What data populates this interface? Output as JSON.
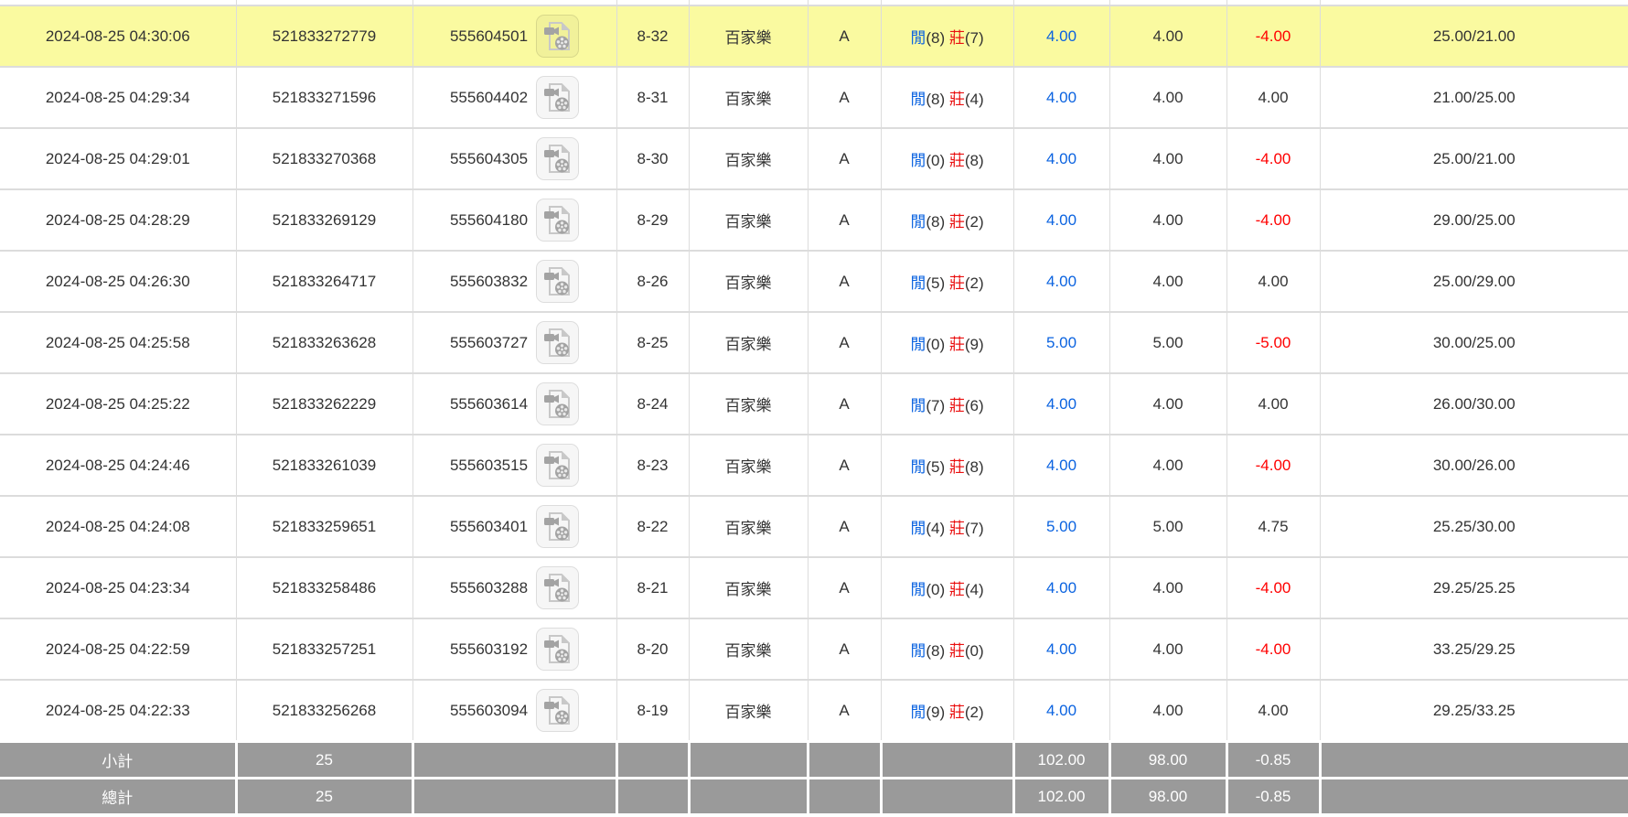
{
  "table": {
    "result_labels": {
      "player": "閒",
      "banker": "莊"
    },
    "icons": {
      "round_replay": "video-file-icon"
    },
    "rows": [
      {
        "time": "2024-08-25 04:30:06",
        "bet_id": "521833272779",
        "round_id": "555604501",
        "table_round": "8-32",
        "game": "百家樂",
        "table_code": "A",
        "player_score": "8",
        "banker_score": "7",
        "bet": "4.00",
        "valid": "4.00",
        "win_loss": "-4.00",
        "balance": "25.00/21.00",
        "highlighted": true
      },
      {
        "time": "2024-08-25 04:29:34",
        "bet_id": "521833271596",
        "round_id": "555604402",
        "table_round": "8-31",
        "game": "百家樂",
        "table_code": "A",
        "player_score": "8",
        "banker_score": "4",
        "bet": "4.00",
        "valid": "4.00",
        "win_loss": "4.00",
        "balance": "21.00/25.00",
        "highlighted": false
      },
      {
        "time": "2024-08-25 04:29:01",
        "bet_id": "521833270368",
        "round_id": "555604305",
        "table_round": "8-30",
        "game": "百家樂",
        "table_code": "A",
        "player_score": "0",
        "banker_score": "8",
        "bet": "4.00",
        "valid": "4.00",
        "win_loss": "-4.00",
        "balance": "25.00/21.00",
        "highlighted": false
      },
      {
        "time": "2024-08-25 04:28:29",
        "bet_id": "521833269129",
        "round_id": "555604180",
        "table_round": "8-29",
        "game": "百家樂",
        "table_code": "A",
        "player_score": "8",
        "banker_score": "2",
        "bet": "4.00",
        "valid": "4.00",
        "win_loss": "-4.00",
        "balance": "29.00/25.00",
        "highlighted": false
      },
      {
        "time": "2024-08-25 04:26:30",
        "bet_id": "521833264717",
        "round_id": "555603832",
        "table_round": "8-26",
        "game": "百家樂",
        "table_code": "A",
        "player_score": "5",
        "banker_score": "2",
        "bet": "4.00",
        "valid": "4.00",
        "win_loss": "4.00",
        "balance": "25.00/29.00",
        "highlighted": false
      },
      {
        "time": "2024-08-25 04:25:58",
        "bet_id": "521833263628",
        "round_id": "555603727",
        "table_round": "8-25",
        "game": "百家樂",
        "table_code": "A",
        "player_score": "0",
        "banker_score": "9",
        "bet": "5.00",
        "valid": "5.00",
        "win_loss": "-5.00",
        "balance": "30.00/25.00",
        "highlighted": false
      },
      {
        "time": "2024-08-25 04:25:22",
        "bet_id": "521833262229",
        "round_id": "555603614",
        "table_round": "8-24",
        "game": "百家樂",
        "table_code": "A",
        "player_score": "7",
        "banker_score": "6",
        "bet": "4.00",
        "valid": "4.00",
        "win_loss": "4.00",
        "balance": "26.00/30.00",
        "highlighted": false
      },
      {
        "time": "2024-08-25 04:24:46",
        "bet_id": "521833261039",
        "round_id": "555603515",
        "table_round": "8-23",
        "game": "百家樂",
        "table_code": "A",
        "player_score": "5",
        "banker_score": "8",
        "bet": "4.00",
        "valid": "4.00",
        "win_loss": "-4.00",
        "balance": "30.00/26.00",
        "highlighted": false
      },
      {
        "time": "2024-08-25 04:24:08",
        "bet_id": "521833259651",
        "round_id": "555603401",
        "table_round": "8-22",
        "game": "百家樂",
        "table_code": "A",
        "player_score": "4",
        "banker_score": "7",
        "bet": "5.00",
        "valid": "5.00",
        "win_loss": "4.75",
        "balance": "25.25/30.00",
        "highlighted": false
      },
      {
        "time": "2024-08-25 04:23:34",
        "bet_id": "521833258486",
        "round_id": "555603288",
        "table_round": "8-21",
        "game": "百家樂",
        "table_code": "A",
        "player_score": "0",
        "banker_score": "4",
        "bet": "4.00",
        "valid": "4.00",
        "win_loss": "-4.00",
        "balance": "29.25/25.25",
        "highlighted": false
      },
      {
        "time": "2024-08-25 04:22:59",
        "bet_id": "521833257251",
        "round_id": "555603192",
        "table_round": "8-20",
        "game": "百家樂",
        "table_code": "A",
        "player_score": "8",
        "banker_score": "0",
        "bet": "4.00",
        "valid": "4.00",
        "win_loss": "-4.00",
        "balance": "33.25/29.25",
        "highlighted": false
      },
      {
        "time": "2024-08-25 04:22:33",
        "bet_id": "521833256268",
        "round_id": "555603094",
        "table_round": "8-19",
        "game": "百家樂",
        "table_code": "A",
        "player_score": "9",
        "banker_score": "2",
        "bet": "4.00",
        "valid": "4.00",
        "win_loss": "4.00",
        "balance": "29.25/33.25",
        "highlighted": false
      }
    ],
    "summary_rows": [
      {
        "label": "小計",
        "count": "25",
        "bet_total": "102.00",
        "valid_total": "98.00",
        "win_loss_total": "-0.85"
      },
      {
        "label": "總計",
        "count": "25",
        "bet_total": "102.00",
        "valid_total": "98.00",
        "win_loss_total": "-0.85"
      }
    ]
  },
  "colors": {
    "highlight_row": "#fafaa0",
    "player_blue": "#0b63e0",
    "banker_red": "#ea1010",
    "bet_blue": "#0b63e0",
    "negative_red": "#ff0000",
    "summary_bg": "#9a9a9a",
    "summary_text": "#ffffff",
    "row_border": "#dcdcdc",
    "text": "#333333"
  }
}
